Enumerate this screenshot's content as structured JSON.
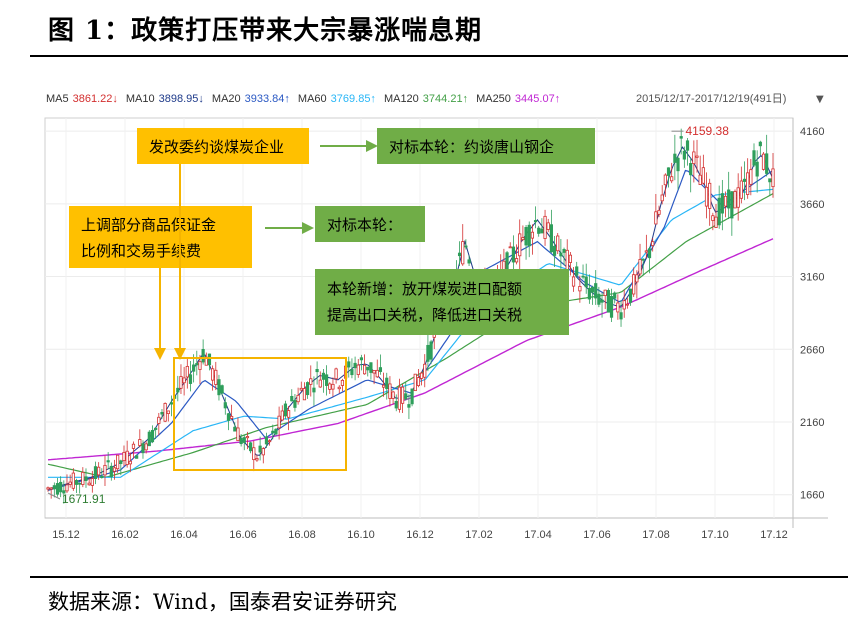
{
  "figure": {
    "title": "图 1：政策打压带来大宗暴涨喘息期",
    "source": "数据来源：Wind，国泰君安证券研究"
  },
  "ma_bar": {
    "items": [
      {
        "label": "MA5",
        "value": "3861.22",
        "arrow": "↓",
        "color": "#d32f2f"
      },
      {
        "label": "MA10",
        "value": "3898.95",
        "arrow": "↓",
        "color": "#1e3a8a"
      },
      {
        "label": "MA20",
        "value": "3933.84",
        "arrow": "↑",
        "color": "#2b59c3"
      },
      {
        "label": "MA60",
        "value": "3769.85",
        "arrow": "↑",
        "color": "#29b6f6"
      },
      {
        "label": "MA120",
        "value": "3744.21",
        "arrow": "↑",
        "color": "#43a047"
      },
      {
        "label": "MA250",
        "value": "3445.07",
        "arrow": "↑",
        "color": "#c026d3"
      }
    ],
    "range": "2015/12/17-2017/12/19(491日)"
  },
  "annotations": {
    "a1": "发改委约谈煤炭企业",
    "a2": "对标本轮：约谈唐山钢企",
    "a3_line1": "上调部分商品保证金",
    "a3_line2": "比例和交易手续费",
    "a4": "对标本轮：",
    "a5_line1": "本轮新增：放开煤炭进口配额",
    "a5_line2": "提高出口关税，降低进口关税",
    "high_label": "4159.38",
    "low_label": "1671.91"
  },
  "chart_data": {
    "type": "candlestick",
    "x_ticks": [
      "15.12",
      "16.02",
      "16.04",
      "16.06",
      "16.08",
      "16.10",
      "16.12",
      "17.02",
      "17.04",
      "17.06",
      "17.08",
      "17.10",
      "17.12"
    ],
    "y_ticks": [
      4160,
      3660,
      3160,
      2660,
      2160,
      1660
    ],
    "ylim": [
      1500,
      4250
    ],
    "series_colors": {
      "up": "#d32f2f",
      "down": "#2e9e5b",
      "ma5": "#1e3a8a",
      "ma20": "#2b59c3",
      "ma60": "#29b6f6",
      "ma120": "#43a047",
      "ma250": "#c026d3"
    },
    "close": [
      {
        "t": 0.0,
        "v": 1700
      },
      {
        "t": 0.06,
        "v": 1780
      },
      {
        "t": 0.1,
        "v": 1880
      },
      {
        "t": 0.14,
        "v": 2050
      },
      {
        "t": 0.17,
        "v": 2300
      },
      {
        "t": 0.2,
        "v": 2520
      },
      {
        "t": 0.215,
        "v": 2640
      },
      {
        "t": 0.24,
        "v": 2350
      },
      {
        "t": 0.265,
        "v": 2050
      },
      {
        "t": 0.29,
        "v": 1920
      },
      {
        "t": 0.31,
        "v": 2050
      },
      {
        "t": 0.33,
        "v": 2250
      },
      {
        "t": 0.355,
        "v": 2400
      },
      {
        "t": 0.375,
        "v": 2480
      },
      {
        "t": 0.4,
        "v": 2450
      },
      {
        "t": 0.425,
        "v": 2550
      },
      {
        "t": 0.44,
        "v": 2560
      },
      {
        "t": 0.46,
        "v": 2450
      },
      {
        "t": 0.48,
        "v": 2320
      },
      {
        "t": 0.5,
        "v": 2340
      },
      {
        "t": 0.52,
        "v": 2550
      },
      {
        "t": 0.54,
        "v": 2850
      },
      {
        "t": 0.56,
        "v": 3100
      },
      {
        "t": 0.575,
        "v": 3400
      },
      {
        "t": 0.59,
        "v": 3150
      },
      {
        "t": 0.61,
        "v": 3050
      },
      {
        "t": 0.63,
        "v": 3200
      },
      {
        "t": 0.655,
        "v": 3420
      },
      {
        "t": 0.675,
        "v": 3550
      },
      {
        "t": 0.69,
        "v": 3450
      },
      {
        "t": 0.71,
        "v": 3300
      },
      {
        "t": 0.73,
        "v": 3150
      },
      {
        "t": 0.75,
        "v": 3050
      },
      {
        "t": 0.77,
        "v": 2980
      },
      {
        "t": 0.79,
        "v": 2950
      },
      {
        "t": 0.81,
        "v": 3100
      },
      {
        "t": 0.83,
        "v": 3350
      },
      {
        "t": 0.845,
        "v": 3650
      },
      {
        "t": 0.86,
        "v": 3900
      },
      {
        "t": 0.875,
        "v": 4050
      },
      {
        "t": 0.89,
        "v": 3950
      },
      {
        "t": 0.905,
        "v": 3800
      },
      {
        "t": 0.92,
        "v": 3600
      },
      {
        "t": 0.94,
        "v": 3650
      },
      {
        "t": 0.96,
        "v": 3750
      },
      {
        "t": 0.975,
        "v": 3950
      },
      {
        "t": 0.985,
        "v": 4000
      },
      {
        "t": 1.0,
        "v": 3830
      }
    ],
    "ma20": [
      {
        "t": 0.0,
        "v": 1690
      },
      {
        "t": 0.1,
        "v": 1830
      },
      {
        "t": 0.17,
        "v": 2150
      },
      {
        "t": 0.215,
        "v": 2450
      },
      {
        "t": 0.26,
        "v": 2300
      },
      {
        "t": 0.3,
        "v": 2050
      },
      {
        "t": 0.36,
        "v": 2250
      },
      {
        "t": 0.44,
        "v": 2450
      },
      {
        "t": 0.5,
        "v": 2360
      },
      {
        "t": 0.56,
        "v": 2800
      },
      {
        "t": 0.6,
        "v": 3200
      },
      {
        "t": 0.675,
        "v": 3400
      },
      {
        "t": 0.74,
        "v": 3120
      },
      {
        "t": 0.79,
        "v": 2980
      },
      {
        "t": 0.85,
        "v": 3500
      },
      {
        "t": 0.88,
        "v": 3900
      },
      {
        "t": 0.93,
        "v": 3650
      },
      {
        "t": 1.0,
        "v": 3890
      }
    ],
    "ma60": [
      {
        "t": 0.0,
        "v": 1780
      },
      {
        "t": 0.1,
        "v": 1780
      },
      {
        "t": 0.2,
        "v": 2100
      },
      {
        "t": 0.27,
        "v": 2200
      },
      {
        "t": 0.33,
        "v": 2180
      },
      {
        "t": 0.44,
        "v": 2330
      },
      {
        "t": 0.52,
        "v": 2450
      },
      {
        "t": 0.6,
        "v": 2950
      },
      {
        "t": 0.69,
        "v": 3250
      },
      {
        "t": 0.79,
        "v": 3100
      },
      {
        "t": 0.86,
        "v": 3550
      },
      {
        "t": 0.92,
        "v": 3720
      },
      {
        "t": 1.0,
        "v": 3760
      }
    ],
    "ma120": [
      {
        "t": 0.0,
        "v": 1870
      },
      {
        "t": 0.08,
        "v": 1780
      },
      {
        "t": 0.2,
        "v": 1950
      },
      {
        "t": 0.3,
        "v": 2120
      },
      {
        "t": 0.44,
        "v": 2280
      },
      {
        "t": 0.55,
        "v": 2600
      },
      {
        "t": 0.66,
        "v": 2950
      },
      {
        "t": 0.79,
        "v": 3050
      },
      {
        "t": 0.88,
        "v": 3400
      },
      {
        "t": 1.0,
        "v": 3730
      }
    ],
    "ma250": [
      {
        "t": 0.0,
        "v": 1900
      },
      {
        "t": 0.15,
        "v": 1960
      },
      {
        "t": 0.28,
        "v": 2030
      },
      {
        "t": 0.4,
        "v": 2150
      },
      {
        "t": 0.52,
        "v": 2360
      },
      {
        "t": 0.66,
        "v": 2720
      },
      {
        "t": 0.79,
        "v": 2950
      },
      {
        "t": 0.9,
        "v": 3200
      },
      {
        "t": 1.0,
        "v": 3420
      }
    ],
    "high": {
      "t": 0.86,
      "v": 4159.38
    },
    "low": {
      "t": 0.0,
      "v": 1671.91
    }
  }
}
